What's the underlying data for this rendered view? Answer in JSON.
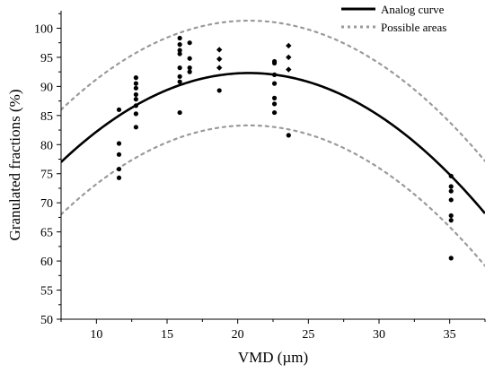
{
  "chart_data": {
    "type": "scatter",
    "xlabel": "VMD (µm)",
    "ylabel": "Granulated fractions (%)",
    "xlim": [
      7.5,
      37.5
    ],
    "ylim": [
      50,
      103
    ],
    "xticks": [
      10,
      15,
      20,
      25,
      30,
      35
    ],
    "yticks": [
      50,
      55,
      60,
      65,
      70,
      75,
      80,
      85,
      90,
      95,
      100
    ],
    "legend": [
      "Analog curve",
      "Possible areas"
    ],
    "legend_position": "top-right",
    "grid": false,
    "curve": {
      "name": "Analog curve",
      "model": "quadratic",
      "vertex_x": 20.8,
      "vertex_y": 92.3,
      "a": -0.0865
    },
    "bounds": {
      "name": "Possible areas",
      "offsets": [
        9,
        -9
      ]
    },
    "points": [
      {
        "x": 11.6,
        "y": 86.0,
        "m": "circle"
      },
      {
        "x": 11.6,
        "y": 80.2,
        "m": "circle"
      },
      {
        "x": 11.6,
        "y": 78.3,
        "m": "circle"
      },
      {
        "x": 11.6,
        "y": 75.8,
        "m": "circle"
      },
      {
        "x": 11.6,
        "y": 74.3,
        "m": "circle"
      },
      {
        "x": 12.8,
        "y": 91.5,
        "m": "circle"
      },
      {
        "x": 12.8,
        "y": 90.5,
        "m": "circle"
      },
      {
        "x": 12.8,
        "y": 89.7,
        "m": "circle"
      },
      {
        "x": 12.8,
        "y": 88.6,
        "m": "circle"
      },
      {
        "x": 12.8,
        "y": 87.8,
        "m": "circle"
      },
      {
        "x": 12.8,
        "y": 86.7,
        "m": "circle"
      },
      {
        "x": 12.8,
        "y": 85.3,
        "m": "circle"
      },
      {
        "x": 12.8,
        "y": 83.0,
        "m": "circle"
      },
      {
        "x": 15.9,
        "y": 98.3,
        "m": "circle"
      },
      {
        "x": 15.9,
        "y": 97.2,
        "m": "circle"
      },
      {
        "x": 15.9,
        "y": 96.2,
        "m": "circle"
      },
      {
        "x": 15.9,
        "y": 95.6,
        "m": "circle"
      },
      {
        "x": 15.9,
        "y": 93.2,
        "m": "circle"
      },
      {
        "x": 15.9,
        "y": 91.7,
        "m": "circle"
      },
      {
        "x": 15.9,
        "y": 90.8,
        "m": "circle"
      },
      {
        "x": 15.9,
        "y": 85.5,
        "m": "circle"
      },
      {
        "x": 16.6,
        "y": 97.5,
        "m": "circle"
      },
      {
        "x": 16.6,
        "y": 94.8,
        "m": "circle"
      },
      {
        "x": 16.6,
        "y": 93.2,
        "m": "circle"
      },
      {
        "x": 16.6,
        "y": 92.5,
        "m": "circle"
      },
      {
        "x": 18.7,
        "y": 96.3,
        "m": "diamond"
      },
      {
        "x": 18.7,
        "y": 94.7,
        "m": "diamond"
      },
      {
        "x": 18.7,
        "y": 93.2,
        "m": "diamond"
      },
      {
        "x": 18.7,
        "y": 89.3,
        "m": "circle"
      },
      {
        "x": 22.6,
        "y": 94.3,
        "m": "circle"
      },
      {
        "x": 22.6,
        "y": 94.0,
        "m": "circle"
      },
      {
        "x": 22.6,
        "y": 92.0,
        "m": "circle"
      },
      {
        "x": 22.6,
        "y": 90.5,
        "m": "circle"
      },
      {
        "x": 22.6,
        "y": 88.0,
        "m": "circle"
      },
      {
        "x": 22.6,
        "y": 87.0,
        "m": "circle"
      },
      {
        "x": 22.6,
        "y": 85.5,
        "m": "circle"
      },
      {
        "x": 23.6,
        "y": 97.0,
        "m": "diamond"
      },
      {
        "x": 23.6,
        "y": 95.0,
        "m": "diamond"
      },
      {
        "x": 23.6,
        "y": 92.9,
        "m": "diamond"
      },
      {
        "x": 23.6,
        "y": 81.6,
        "m": "circle"
      },
      {
        "x": 35.1,
        "y": 74.6,
        "m": "circle"
      },
      {
        "x": 35.1,
        "y": 72.8,
        "m": "circle"
      },
      {
        "x": 35.1,
        "y": 72.0,
        "m": "circle"
      },
      {
        "x": 35.1,
        "y": 70.5,
        "m": "circle"
      },
      {
        "x": 35.1,
        "y": 67.8,
        "m": "circle"
      },
      {
        "x": 35.1,
        "y": 67.0,
        "m": "circle"
      },
      {
        "x": 35.1,
        "y": 60.5,
        "m": "circle"
      }
    ]
  }
}
